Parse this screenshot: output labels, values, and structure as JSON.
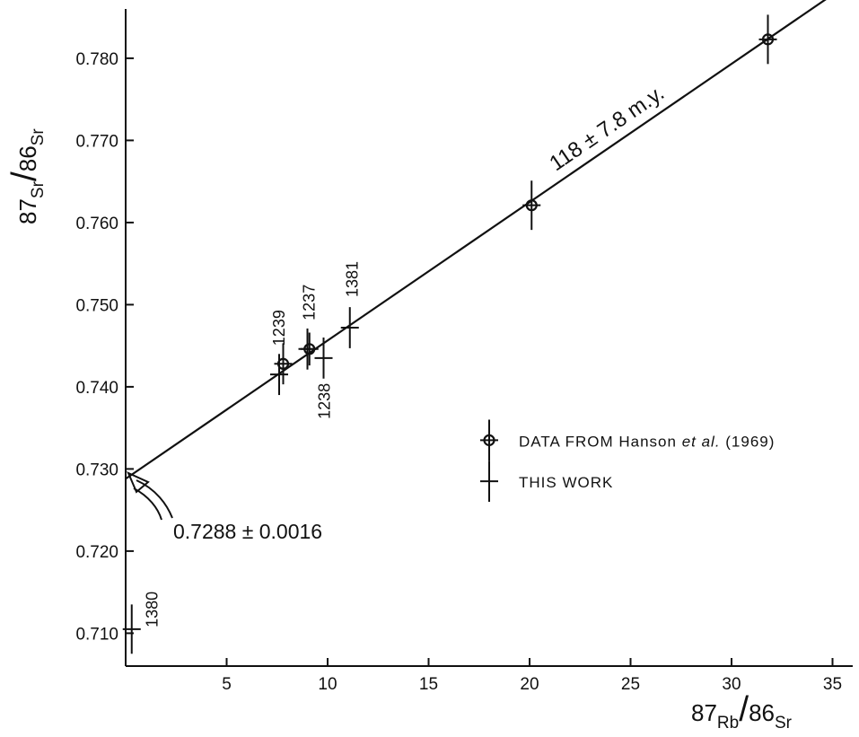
{
  "chart_data": {
    "type": "scatter",
    "title": "",
    "xlabel": {
      "sup1": "87",
      "main1": "Rb",
      "sup2": "86",
      "main2": "Sr"
    },
    "ylabel": {
      "sup1": "87",
      "main1": "Sr",
      "sup2": "86",
      "main2": "Sr"
    },
    "xlim": [
      0,
      36
    ],
    "ylim": [
      0.706,
      0.786
    ],
    "x_ticks": [
      5,
      10,
      15,
      20,
      25,
      30,
      35
    ],
    "y_ticks": [
      0.71,
      0.72,
      0.73,
      0.74,
      0.75,
      0.76,
      0.77,
      0.78
    ],
    "x_tick_labels": [
      "5",
      "10",
      "15",
      "20",
      "25",
      "30",
      "35"
    ],
    "y_tick_labels": [
      "0.710",
      "0.720",
      "0.730",
      "0.740",
      "0.750",
      "0.760",
      "0.770",
      "0.780"
    ],
    "grid": false,
    "legend_position": "right-middle",
    "series": [
      {
        "name": "DATA FROM Hanson et al. (1969)",
        "marker": "circle-cross",
        "points": [
          {
            "x": 7.8,
            "y": 0.7428,
            "yerr": 0.0025,
            "label": ""
          },
          {
            "x": 9.1,
            "y": 0.7446,
            "yerr": 0.002,
            "label": ""
          },
          {
            "x": 20.1,
            "y": 0.7621,
            "yerr": 0.003,
            "label": ""
          },
          {
            "x": 31.8,
            "y": 0.7823,
            "yerr": 0.003,
            "label": ""
          }
        ]
      },
      {
        "name": "THIS WORK",
        "marker": "cross",
        "points": [
          {
            "x": 7.6,
            "y": 0.7415,
            "yerr": 0.0025,
            "label": "1239"
          },
          {
            "x": 9.0,
            "y": 0.7446,
            "yerr": 0.0025,
            "label": "1237"
          },
          {
            "x": 9.8,
            "y": 0.7435,
            "yerr": 0.0025,
            "label": "1238"
          },
          {
            "x": 11.1,
            "y": 0.7472,
            "yerr": 0.0025,
            "label": "1381"
          },
          {
            "x": 0.3,
            "y": 0.7105,
            "yerr": 0.003,
            "label": "1380"
          }
        ]
      }
    ],
    "isochron": {
      "intercept": 0.7288,
      "slope": 0.001684,
      "x_range": [
        0,
        36
      ],
      "label": "118 ± 7.8 m.y."
    },
    "annotations": {
      "intercept_text": "0.7288 ± 0.0016"
    },
    "legend": {
      "items": [
        {
          "marker": "circle-cross",
          "text_main": "DATA FROM Hanson ",
          "text_italic": "et al.",
          "text_tail": " (1969)"
        },
        {
          "marker": "cross",
          "text_main": "THIS WORK",
          "text_italic": "",
          "text_tail": ""
        }
      ]
    },
    "colors": {
      "ink": "#111111",
      "background": "#ffffff"
    }
  }
}
